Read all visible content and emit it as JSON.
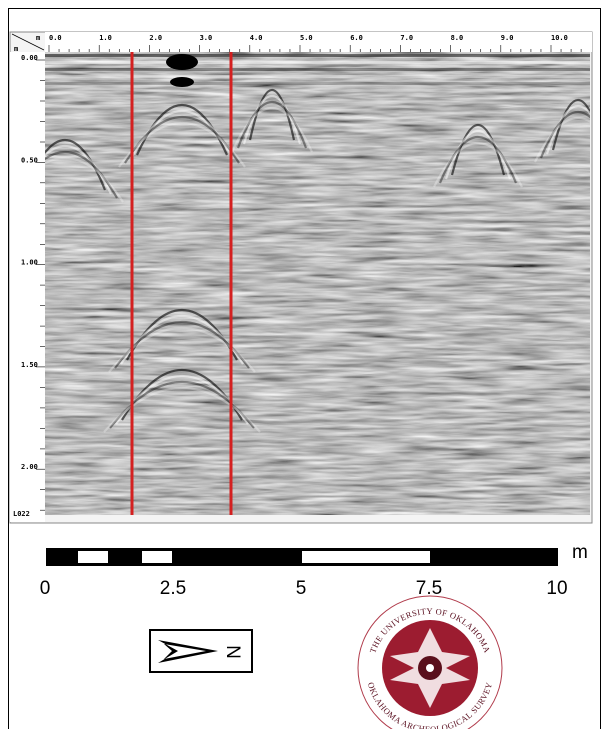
{
  "profile": {
    "distance_unit": "m",
    "distance_labels": [
      "0.0",
      "1.0",
      "2.0",
      "3.0",
      "4.0",
      "5.0",
      "6.0",
      "7.0",
      "8.0",
      "9.0",
      "10.0"
    ],
    "depth_unit": "m",
    "depth_labels": [
      "0.00",
      "0.50",
      "1.00",
      "1.50",
      "2.00"
    ],
    "line_label": "L022"
  },
  "scale_bar": {
    "labels": [
      "0",
      "2.5",
      "5",
      "7.5",
      "10"
    ],
    "unit": "m"
  },
  "north_arrow": {
    "label": "N"
  },
  "logo": {
    "top_text": "THE UNIVERSITY OF OKLAHOMA",
    "bottom_text": "OKLAHOMA ARCHEOLOGICAL SURVEY"
  }
}
